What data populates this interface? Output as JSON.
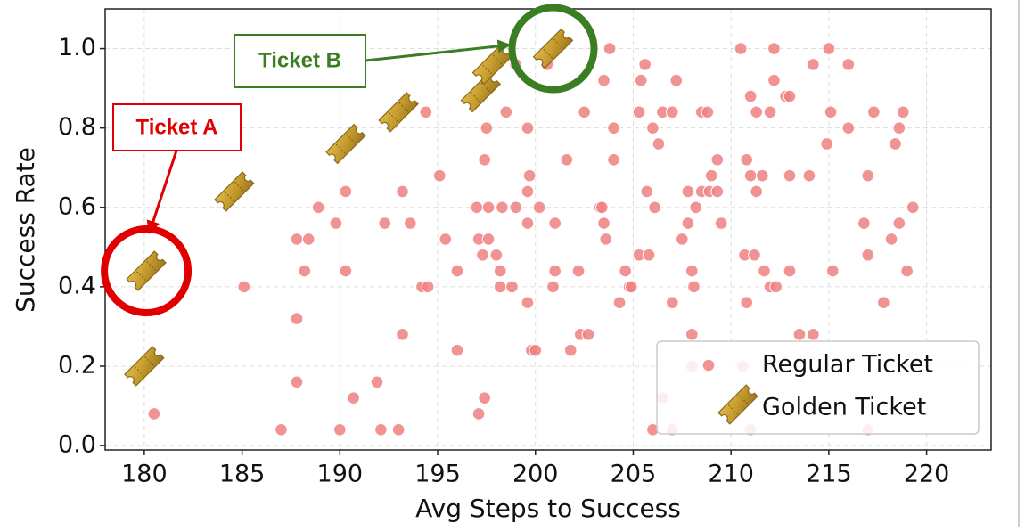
{
  "chart_data": {
    "type": "scatter",
    "xlabel": "Avg Steps to Success",
    "ylabel": "Success Rate",
    "xlim": [
      178,
      223.3
    ],
    "ylim": [
      -0.011,
      1.1
    ],
    "xticks": [
      180,
      185,
      190,
      195,
      200,
      205,
      210,
      215,
      220
    ],
    "yticks": [
      {
        "value": 0,
        "label": "0.0"
      },
      0.2,
      0.4,
      0.6,
      0.8,
      {
        "value": 1,
        "label": "1.0"
      }
    ],
    "grid": true,
    "legend": "lower right",
    "annotations": [
      "Ticket A",
      "Ticket B"
    ],
    "series": [
      {
        "name": "Regular Ticket",
        "color": "#f08080",
        "marker": "circle",
        "x": [
          203.8,
          210.5,
          212.2,
          215,
          199,
          200.6,
          205.6,
          214.2,
          216,
          203.5,
          205.4,
          207.2,
          212.2,
          211,
          212.8,
          213,
          194.4,
          198.5,
          202.5,
          205.3,
          206.5,
          207,
          208.5,
          208.8,
          211.3,
          212,
          215.1,
          217.3,
          218.8,
          197.5,
          199.6,
          204,
          206,
          216,
          218.6,
          206.3,
          214.9,
          218.4,
          197.4,
          201.6,
          204,
          209.3,
          210.8,
          195.1,
          199.7,
          209,
          211,
          211.6,
          213,
          214,
          217,
          190.3,
          193.2,
          199.6,
          205.7,
          207.8,
          208.5,
          208.9,
          209.3,
          211.3,
          188.9,
          197,
          197.6,
          198.3,
          199,
          200.2,
          203.3,
          203.4,
          206.1,
          208.2,
          219.3,
          189.8,
          192.3,
          193.6,
          199.6,
          201,
          203.5,
          207.8,
          209.5,
          216.8,
          218.6,
          187.8,
          188.4,
          195.4,
          197.1,
          197.6,
          203.6,
          207.5,
          218.2,
          197.3,
          198,
          205.3,
          205.8,
          210.7,
          211.2,
          217,
          188.2,
          190.3,
          196,
          198.2,
          201,
          202.2,
          204.6,
          208,
          211.7,
          213,
          215.2,
          219,
          185.1,
          194.2,
          194.5,
          198.2,
          198.8,
          200.9,
          204.8,
          204.9,
          208.1,
          212,
          212.3,
          199.6,
          204.3,
          207,
          210.8,
          217.8,
          187.8,
          193.2,
          202.3,
          202.7,
          208,
          213.5,
          214.2,
          196,
          199.8,
          200,
          201.8,
          208,
          210.6,
          187.8,
          191.9,
          190.7,
          197.4,
          206.5,
          180.5,
          197.1,
          187,
          190,
          192.1,
          193,
          206,
          207,
          211,
          217
        ],
        "values": [
          1,
          1,
          1,
          1,
          0.96,
          0.96,
          0.96,
          0.96,
          0.96,
          0.92,
          0.92,
          0.92,
          0.92,
          0.88,
          0.88,
          0.88,
          0.84,
          0.84,
          0.84,
          0.84,
          0.84,
          0.84,
          0.84,
          0.84,
          0.84,
          0.84,
          0.84,
          0.84,
          0.84,
          0.8,
          0.8,
          0.8,
          0.8,
          0.8,
          0.8,
          0.76,
          0.76,
          0.76,
          0.72,
          0.72,
          0.72,
          0.72,
          0.72,
          0.68,
          0.68,
          0.68,
          0.68,
          0.68,
          0.68,
          0.68,
          0.68,
          0.64,
          0.64,
          0.64,
          0.64,
          0.64,
          0.64,
          0.64,
          0.64,
          0.64,
          0.6,
          0.6,
          0.6,
          0.6,
          0.6,
          0.6,
          0.6,
          0.6,
          0.6,
          0.6,
          0.6,
          0.56,
          0.56,
          0.56,
          0.56,
          0.56,
          0.56,
          0.56,
          0.56,
          0.56,
          0.56,
          0.52,
          0.52,
          0.52,
          0.52,
          0.52,
          0.52,
          0.52,
          0.52,
          0.48,
          0.48,
          0.48,
          0.48,
          0.48,
          0.48,
          0.48,
          0.44,
          0.44,
          0.44,
          0.44,
          0.44,
          0.44,
          0.44,
          0.44,
          0.44,
          0.44,
          0.44,
          0.44,
          0.4,
          0.4,
          0.4,
          0.4,
          0.4,
          0.4,
          0.4,
          0.4,
          0.4,
          0.4,
          0.4,
          0.36,
          0.36,
          0.36,
          0.36,
          0.36,
          0.32,
          0.28,
          0.28,
          0.28,
          0.28,
          0.28,
          0.28,
          0.24,
          0.24,
          0.24,
          0.24,
          0.2,
          0.2,
          0.16,
          0.16,
          0.12,
          0.12,
          0.12,
          0.08,
          0.08,
          0.04,
          0.04,
          0.04,
          0.04,
          0.04,
          0.04,
          0.04,
          0.04
        ]
      },
      {
        "name": "Golden Ticket",
        "color": "#c49a2c",
        "marker": "ticket",
        "x": [
          180,
          180.1,
          184.6,
          190.3,
          193,
          197.2,
          197.8,
          200.9
        ],
        "values": [
          0.2,
          0.44,
          0.64,
          0.76,
          0.84,
          0.89,
          0.96,
          1
        ]
      }
    ]
  }
}
